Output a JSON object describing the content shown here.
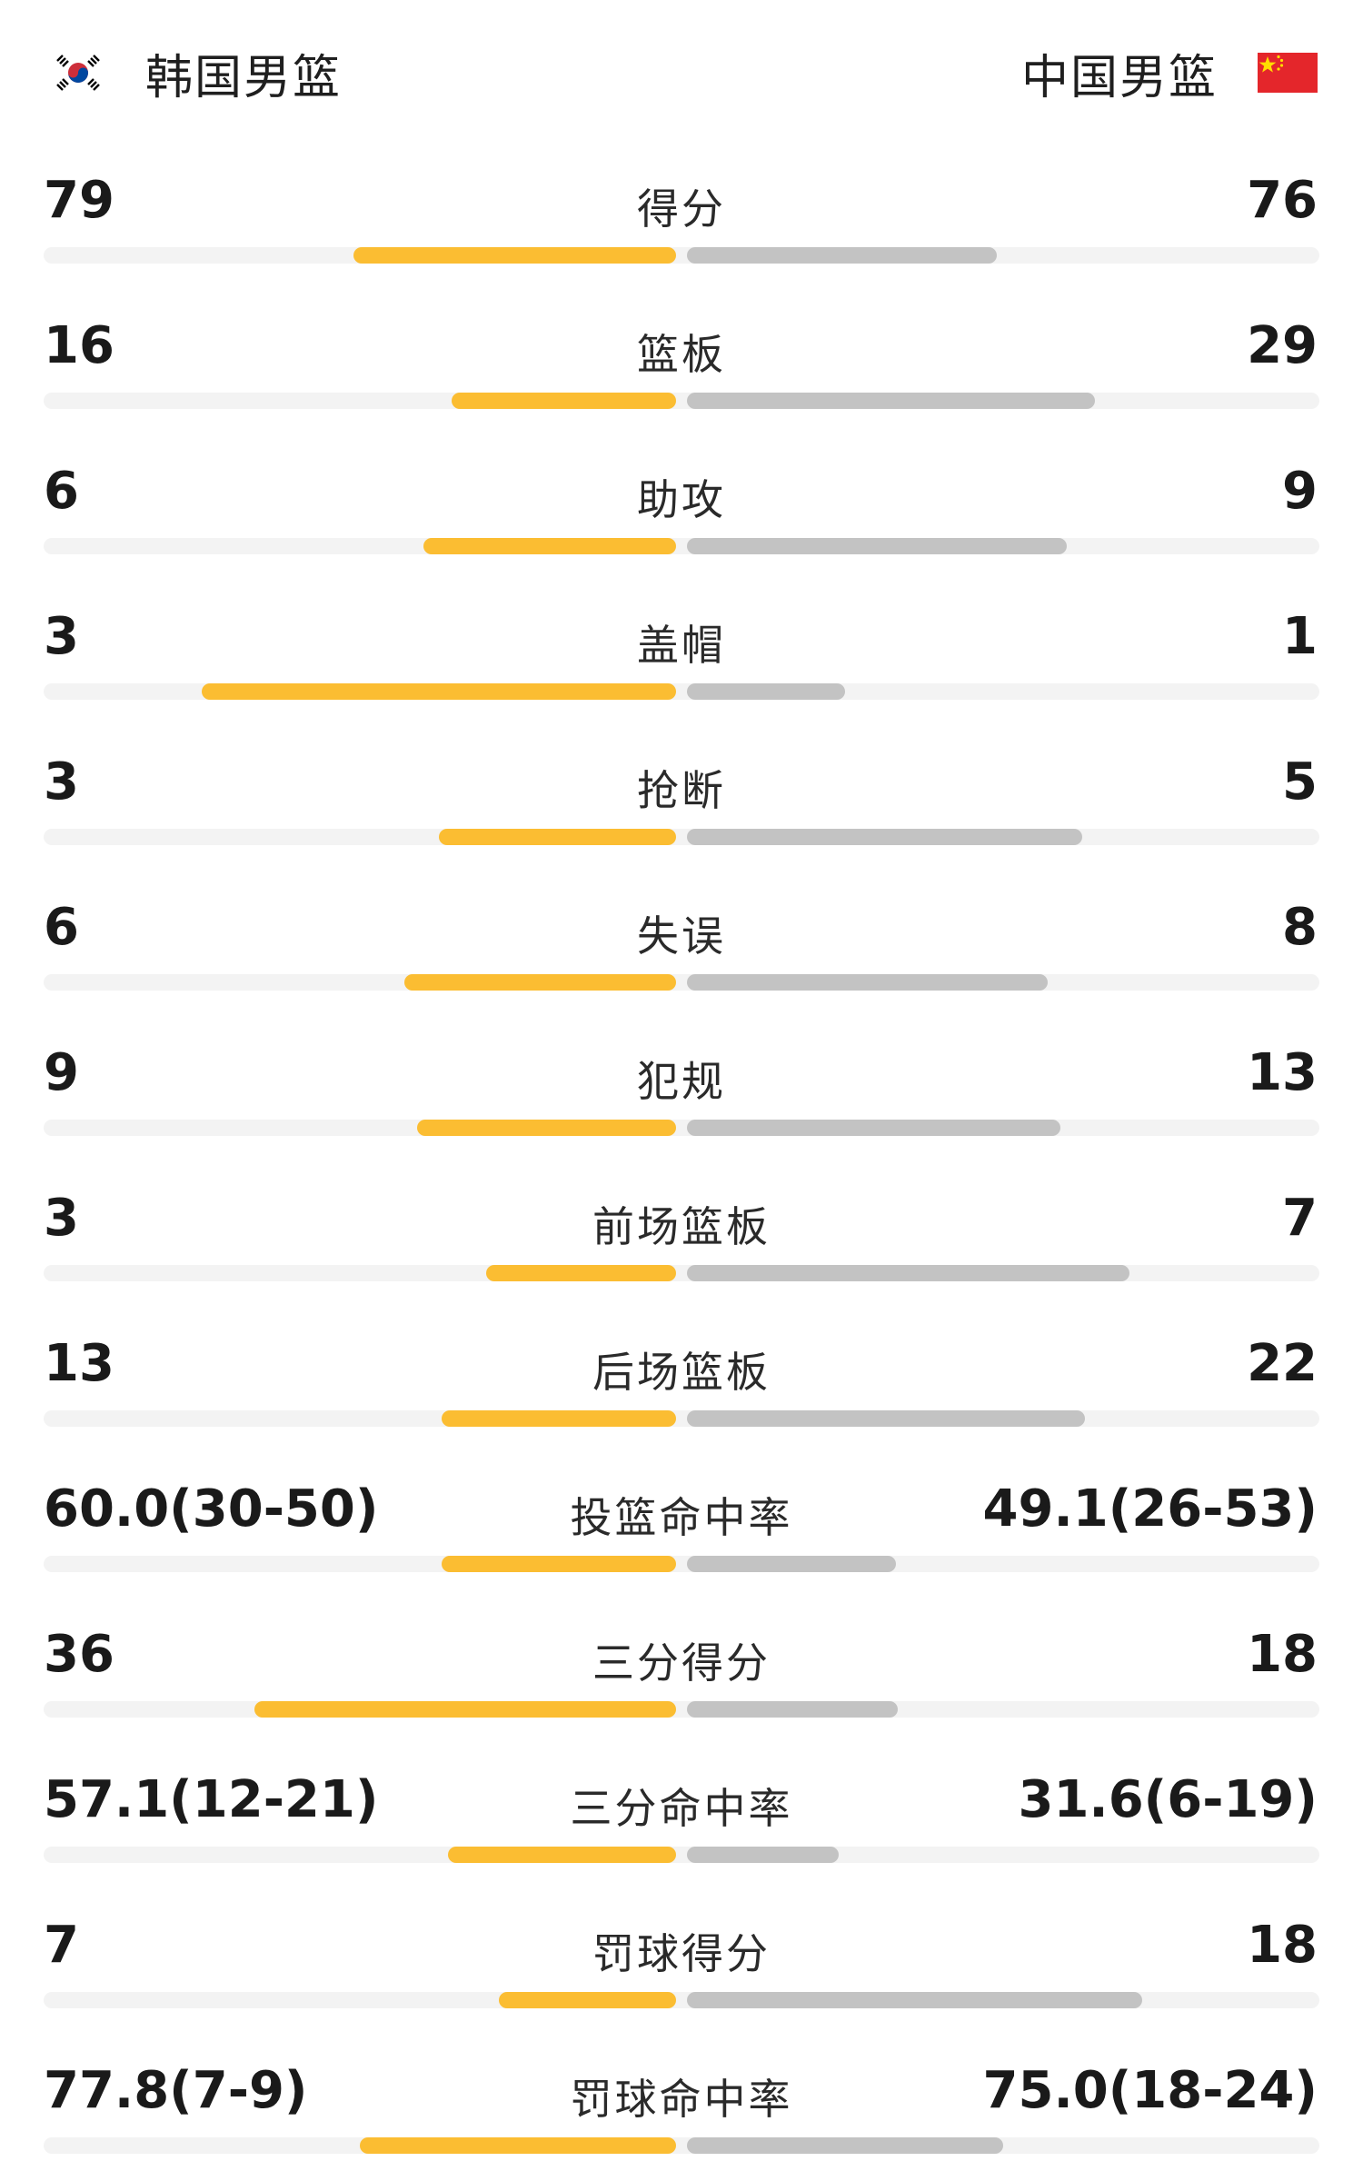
{
  "header": {
    "left_team": "韩国男篮",
    "right_team": "中国男篮",
    "left_flag": "south-korea-flag-icon",
    "right_flag": "china-flag-icon"
  },
  "colors": {
    "left_bar": "#fbbd32",
    "right_bar": "#c3c3c3",
    "track": "#f3f3f3"
  },
  "stats": [
    {
      "label": "得分",
      "left": "79",
      "right": "76",
      "left_share": 0.51,
      "right_share": 0.49
    },
    {
      "label": "篮板",
      "left": "16",
      "right": "29",
      "left_share": 0.355,
      "right_share": 0.645
    },
    {
      "label": "助攻",
      "left": "6",
      "right": "9",
      "left_share": 0.4,
      "right_share": 0.6
    },
    {
      "label": "盖帽",
      "left": "3",
      "right": "1",
      "left_share": 0.75,
      "right_share": 0.25
    },
    {
      "label": "抢断",
      "left": "3",
      "right": "5",
      "left_share": 0.375,
      "right_share": 0.625
    },
    {
      "label": "失误",
      "left": "6",
      "right": "8",
      "left_share": 0.43,
      "right_share": 0.57
    },
    {
      "label": "犯规",
      "left": "9",
      "right": "13",
      "left_share": 0.41,
      "right_share": 0.59
    },
    {
      "label": "前场篮板",
      "left": "3",
      "right": "7",
      "left_share": 0.3,
      "right_share": 0.7
    },
    {
      "label": "后场篮板",
      "left": "13",
      "right": "22",
      "left_share": 0.37,
      "right_share": 0.63
    },
    {
      "label": "投篮命中率",
      "left": "60.0(30-50)",
      "right": "49.1(26-53)",
      "left_share": 0.37,
      "right_share": 0.33
    },
    {
      "label": "三分得分",
      "left": "36",
      "right": "18",
      "left_share": 0.667,
      "right_share": 0.333
    },
    {
      "label": "三分命中率",
      "left": "57.1(12-21)",
      "right": "31.6(6-19)",
      "left_share": 0.36,
      "right_share": 0.24
    },
    {
      "label": "罚球得分",
      "left": "7",
      "right": "18",
      "left_share": 0.28,
      "right_share": 0.72
    },
    {
      "label": "罚球命中率",
      "left": "77.8(7-9)",
      "right": "75.0(18-24)",
      "left_share": 0.5,
      "right_share": 0.5
    }
  ]
}
